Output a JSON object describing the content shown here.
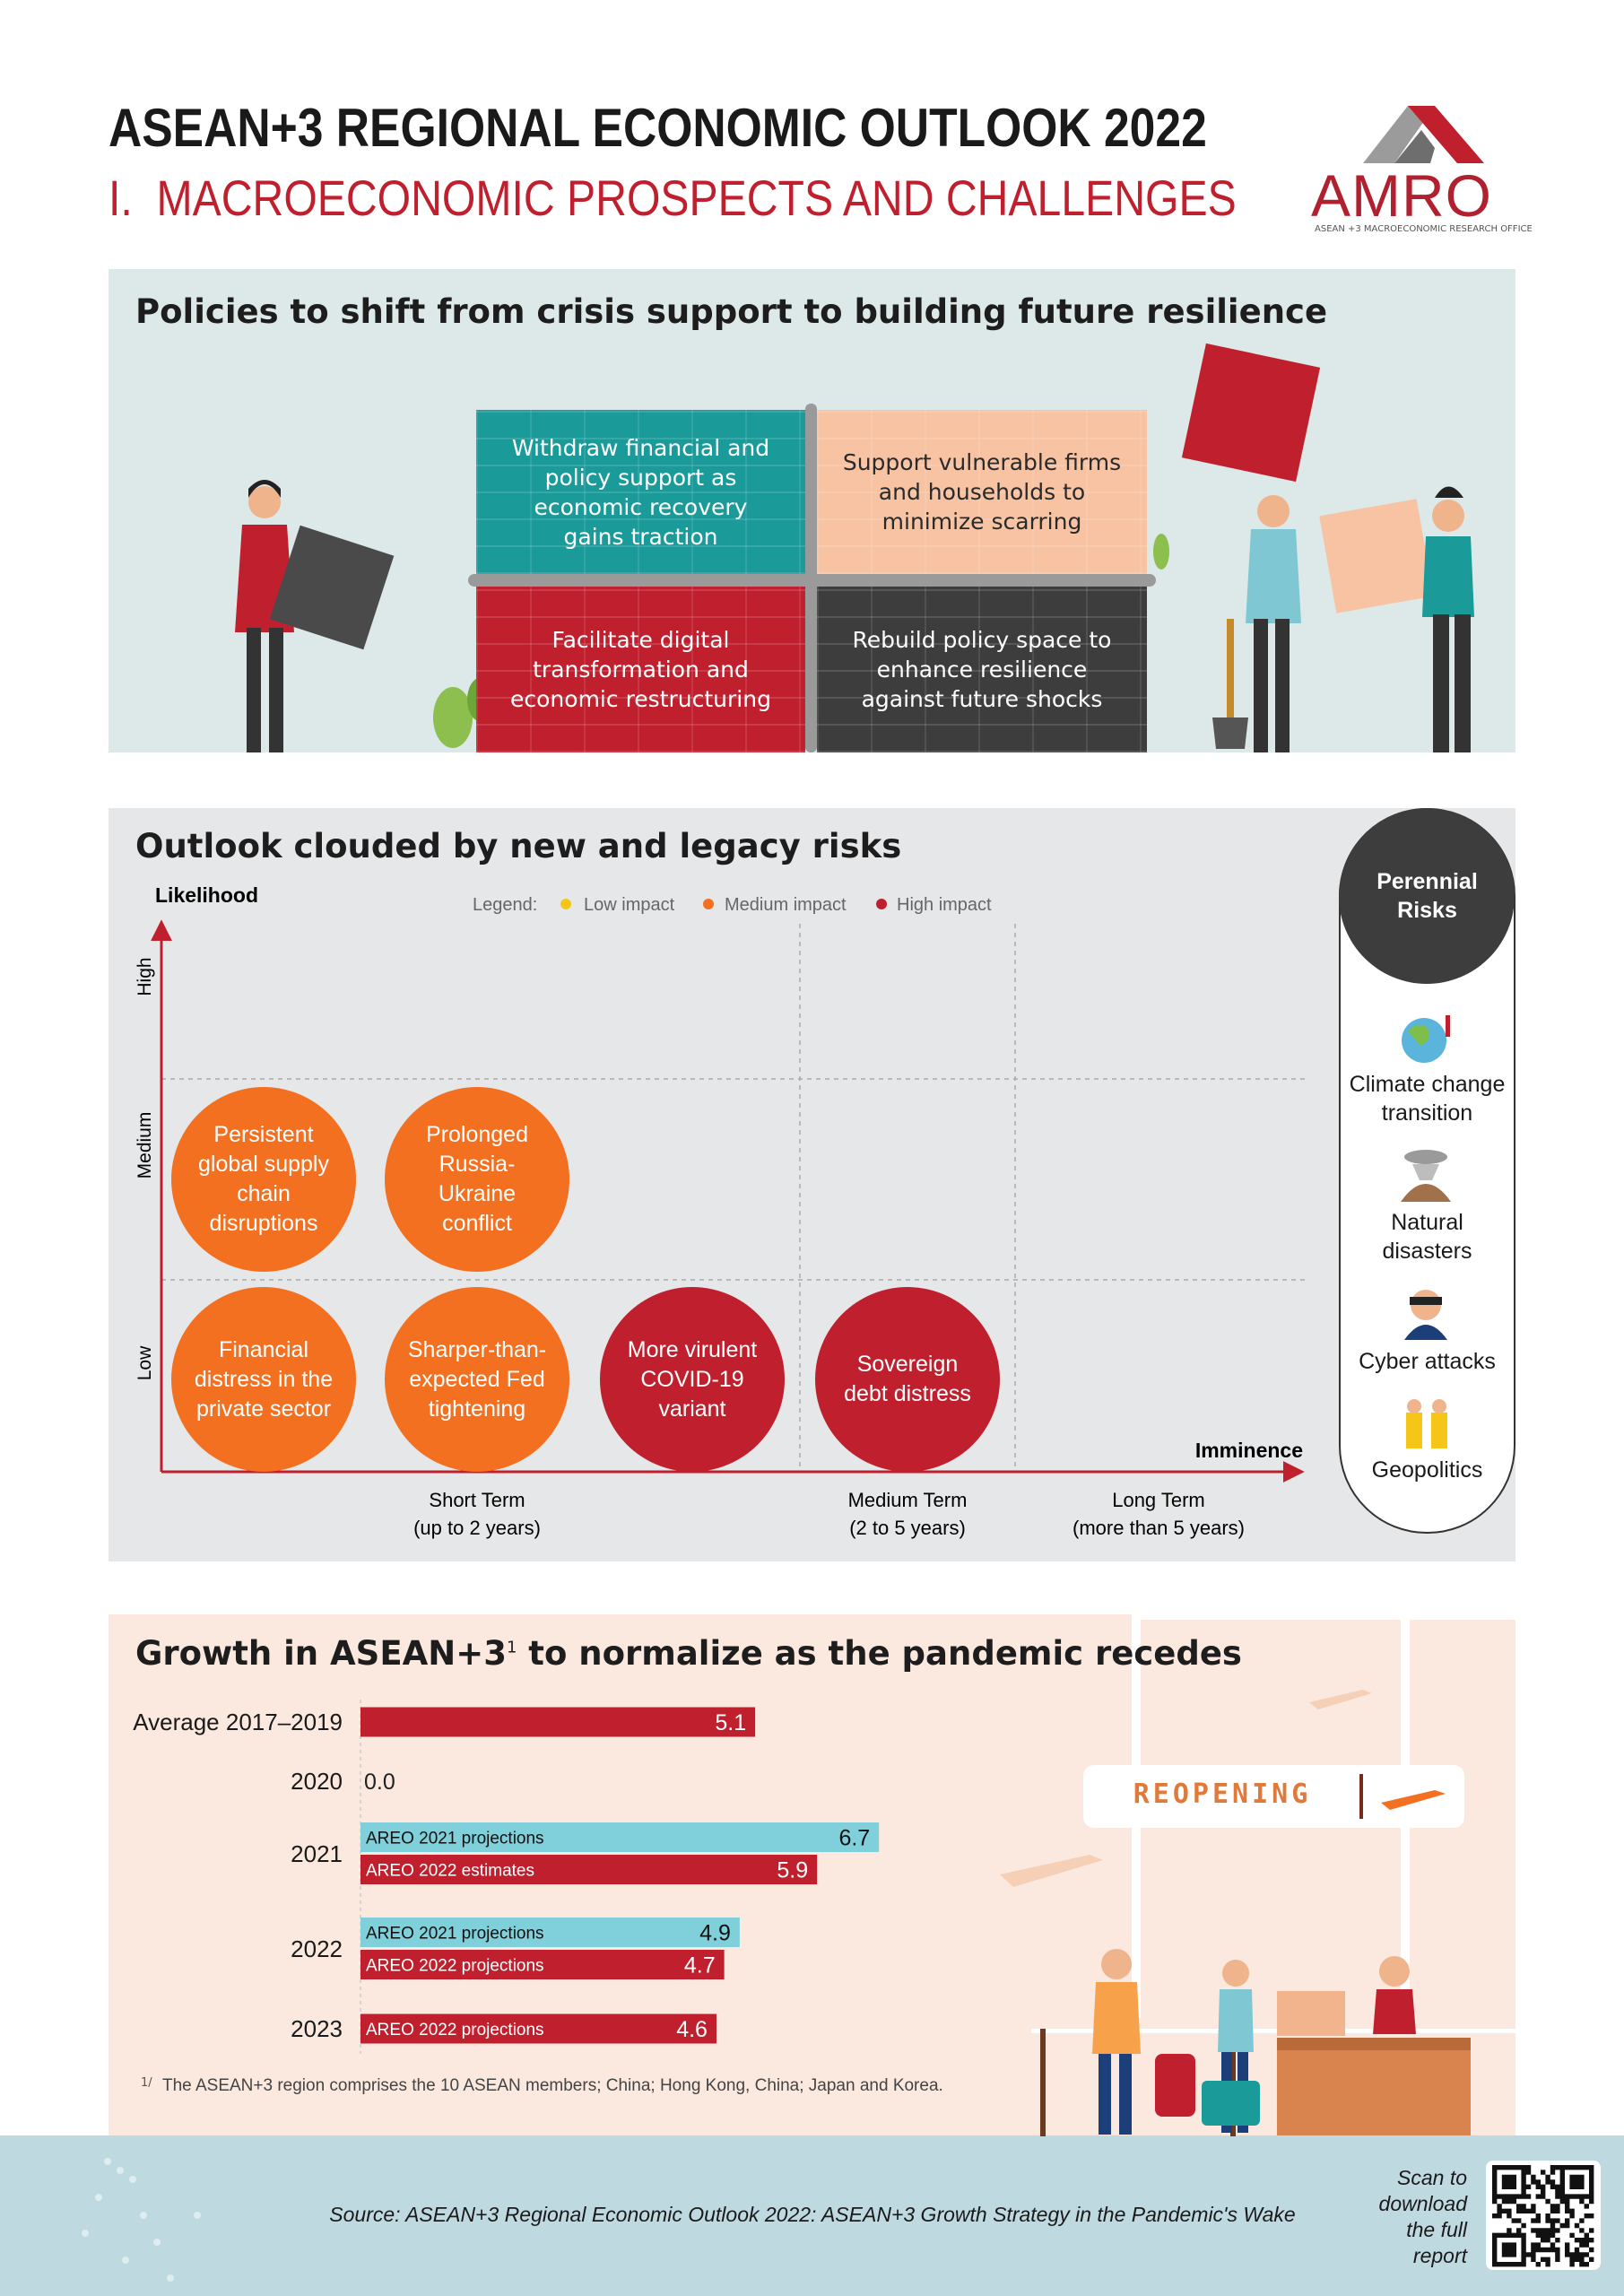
{
  "header": {
    "title": "ASEAN+3 REGIONAL ECONOMIC OUTLOOK 2022",
    "subtitle": "I.  MACROECONOMIC PROSPECTS AND CHALLENGES",
    "logo": "AMRO",
    "logo_caption": "ASEAN +3 MACROECONOMIC RESEARCH OFFICE"
  },
  "policies": {
    "title": "Policies to shift from crisis support to building future resilience",
    "quadrants": [
      {
        "text": "Withdraw financial and policy support as economic recovery gains traction",
        "color": "#1b9a9a"
      },
      {
        "text": "Support vulnerable firms and households to minimize scarring",
        "color": "#f7c3a3"
      },
      {
        "text": "Facilitate digital transformation and economic restructuring",
        "color": "#c0202e"
      },
      {
        "text": "Rebuild policy space to enhance resilience against future shocks",
        "color": "#3d3d3d"
      }
    ]
  },
  "risks": {
    "title": "Outlook clouded by new and legacy risks",
    "y_label": "Likelihood",
    "x_label": "Imminence",
    "legend_title": "Legend:",
    "legend": [
      {
        "label": "Low impact",
        "color": "#f5c518"
      },
      {
        "label": "Medium impact",
        "color": "#f37021"
      },
      {
        "label": "High impact",
        "color": "#c0202e"
      }
    ],
    "likelihood_levels": [
      "High",
      "Medium",
      "Low"
    ],
    "terms": [
      {
        "name": "Short Term",
        "range": "(up to 2 years)"
      },
      {
        "name": "Medium Term",
        "range": "(2 to 5 years)"
      },
      {
        "name": "Long Term",
        "range": "(more than 5 years)"
      }
    ],
    "items": [
      {
        "text": "Persistent global supply chain disruptions",
        "color": "#f37021"
      },
      {
        "text": "Prolonged Russia-Ukraine conflict",
        "color": "#f37021"
      },
      {
        "text": "Financial distress in the private sector",
        "color": "#f37021"
      },
      {
        "text": "Sharper-than-expected Fed tightening",
        "color": "#f37021"
      },
      {
        "text": "More virulent COVID-19 variant",
        "color": "#c0202e"
      },
      {
        "text": "Sovereign debt distress",
        "color": "#c0202e"
      }
    ],
    "perennial": {
      "title": "Perennial Risks",
      "items": [
        "Climate change transition",
        "Natural disasters",
        "Cyber attacks",
        "Geopolitics"
      ]
    }
  },
  "growth": {
    "title_main": "Growth in ASEAN+3",
    "title_sup": "1",
    "title_rest": " to normalize as the pandemic recedes",
    "rows": [
      {
        "label": "Average 2017–2019",
        "bars": [
          {
            "value": 5.1,
            "color": "#c0202e"
          }
        ]
      },
      {
        "label": "2020",
        "bars": [
          {
            "value": 0,
            "value_label": "0.0",
            "color": "#c0202e"
          }
        ]
      },
      {
        "label": "2021",
        "bars": [
          {
            "name": "AREO 2021 projections",
            "value": 6.7,
            "color": "#7fd0da"
          },
          {
            "name": "AREO 2022 estimates",
            "value": 5.9,
            "color": "#c0202e"
          }
        ]
      },
      {
        "label": "2022",
        "bars": [
          {
            "name": "AREO 2021 projections",
            "value": 4.9,
            "color": "#7fd0da"
          },
          {
            "name": "AREO 2022 projections",
            "value": 4.7,
            "color": "#c0202e"
          }
        ]
      },
      {
        "label": "2023",
        "bars": [
          {
            "name": "AREO 2022 projections",
            "value": 4.6,
            "color": "#c0202e"
          }
        ]
      }
    ],
    "footnote_marker": "1/",
    "footnote": "The ASEAN+3 region comprises the 10 ASEAN members; China; Hong Kong, China; Japan and Korea.",
    "sign": "REOPENING"
  },
  "footer": {
    "source": "Source: ASEAN+3 Regional Economic Outlook 2022: ASEAN+3 Growth Strategy in the Pandemic's Wake",
    "scan": "Scan to download the full report"
  }
}
